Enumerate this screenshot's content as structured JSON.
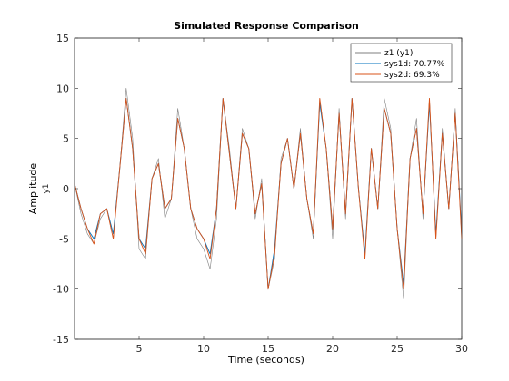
{
  "chart_data": {
    "type": "line",
    "title": "Simulated Response Comparison",
    "xlabel": "Time (seconds)",
    "ylabel": "Amplitude",
    "ylabel_sub": "y1",
    "xlim": [
      0,
      30
    ],
    "ylim": [
      -15,
      15
    ],
    "x_ticks": [
      5,
      10,
      15,
      20,
      25,
      30
    ],
    "y_ticks": [
      -15,
      -10,
      -5,
      0,
      5,
      10,
      15
    ],
    "grid": false,
    "legend_position": "top-right",
    "x": [
      0,
      0.5,
      1,
      1.5,
      2,
      2.5,
      3,
      3.5,
      4,
      4.5,
      5,
      5.5,
      6,
      6.5,
      7,
      7.5,
      8,
      8.5,
      9,
      9.5,
      10,
      10.5,
      11,
      11.5,
      12,
      12.5,
      13,
      13.5,
      14,
      14.5,
      15,
      15.5,
      16,
      16.5,
      17,
      17.5,
      18,
      18.5,
      19,
      19.5,
      20,
      20.5,
      21,
      21.5,
      22,
      22.5,
      23,
      23.5,
      24,
      24.5,
      25,
      25.5,
      26,
      26.5,
      27,
      27.5,
      28,
      28.5,
      29,
      29.5,
      30
    ],
    "series": [
      {
        "name": "z1 (y1)",
        "color": "#7f7f7f",
        "values": [
          0.5,
          -2.5,
          -4.5,
          -5.5,
          -3,
          -2,
          -5,
          2,
          10,
          5,
          -6,
          -7,
          1,
          3,
          -3,
          -1,
          8,
          4,
          -2,
          -5,
          -6,
          -8,
          -3,
          9,
          4,
          -2,
          6,
          4,
          -3,
          1,
          -10,
          -7,
          3,
          5,
          0,
          6,
          -1,
          -5,
          9,
          4,
          -5,
          8,
          -3,
          9,
          0,
          -7,
          4,
          -2,
          9,
          6,
          -4,
          -11,
          3,
          7,
          -3,
          9,
          -5,
          6,
          -2,
          8,
          -5
        ]
      },
      {
        "name": "sys1d: 70.77%",
        "color": "#0072bd",
        "values": [
          0.5,
          -2,
          -4,
          -5,
          -2.5,
          -2,
          -4.5,
          2,
          9,
          4,
          -5,
          -6,
          1,
          2.5,
          -2,
          -1,
          7,
          4,
          -2,
          -4,
          -5,
          -6.5,
          -2,
          9,
          3.5,
          -2,
          5.5,
          4,
          -2.5,
          0.5,
          -10,
          -6,
          2.5,
          5,
          0,
          5.5,
          -1,
          -4.5,
          8.5,
          4,
          -4,
          7.5,
          -2.5,
          9,
          0,
          -6.5,
          4,
          -2,
          8,
          5.5,
          -4,
          -9.5,
          3,
          6,
          -2.5,
          8.5,
          -4.5,
          5.5,
          -2,
          7.5,
          -4.5
        ]
      },
      {
        "name": "sys2d: 69.3%",
        "color": "#d95319",
        "values": [
          0.5,
          -2,
          -4,
          -5.5,
          -2.5,
          -2,
          -5,
          2,
          9,
          4,
          -5,
          -6.5,
          1,
          2.5,
          -2,
          -1,
          7,
          4,
          -2,
          -4,
          -5,
          -7,
          -2,
          9,
          3.5,
          -2,
          5.5,
          4,
          -2.5,
          0.5,
          -10,
          -6.5,
          2.5,
          5,
          0,
          5.5,
          -1,
          -4.5,
          9,
          4,
          -4,
          7.5,
          -2.5,
          9,
          0,
          -7,
          4,
          -2,
          8,
          5.5,
          -4,
          -10,
          3,
          6,
          -2.5,
          9,
          -5,
          5.5,
          -2,
          7.5,
          -5
        ]
      }
    ]
  }
}
